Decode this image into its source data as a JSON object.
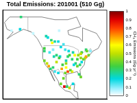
{
  "chart_data": {
    "type": "map",
    "title": "Total Emissions: 201001 (510 Gg)",
    "xlim": [
      -170,
      -50
    ],
    "ylim": [
      10,
      75
    ],
    "tick_labels": false,
    "grid": false,
    "colorbar": {
      "label": "CH₄ Emissions (Gg yr⁻¹)",
      "range": [
        0,
        1
      ],
      "ticks": [
        0,
        0.1,
        0.2,
        0.3,
        0.4,
        0.5,
        0.6,
        0.7,
        0.8,
        0.9,
        1
      ]
    },
    "cells": [
      [
        -114,
        53,
        0.3
      ],
      [
        -113,
        51,
        0.6
      ],
      [
        -110,
        52,
        0.25
      ],
      [
        -106,
        52,
        0.2
      ],
      [
        -100,
        50,
        0.15
      ],
      [
        -118,
        55,
        0.2
      ],
      [
        -120,
        56,
        0.25
      ],
      [
        -79,
        44,
        0.35
      ],
      [
        -74,
        46,
        0.3
      ],
      [
        -80,
        43,
        0.5
      ],
      [
        -73,
        45,
        0.4
      ],
      [
        -105,
        60,
        0.05
      ],
      [
        -75,
        40,
        0.5
      ],
      [
        -74,
        41,
        0.7
      ],
      [
        -77,
        39,
        0.4
      ],
      [
        -80,
        40,
        0.45
      ],
      [
        -84,
        39,
        0.35
      ],
      [
        -87,
        42,
        0.6
      ],
      [
        -83,
        42,
        0.45
      ],
      [
        -90,
        39,
        0.3
      ],
      [
        -86,
        36,
        0.3
      ],
      [
        -84,
        34,
        0.4
      ],
      [
        -81,
        35,
        0.3
      ],
      [
        -82,
        28,
        0.3
      ],
      [
        -80,
        26,
        0.4
      ],
      [
        -90,
        30,
        0.55
      ],
      [
        -92,
        31,
        0.4
      ],
      [
        -95,
        30,
        0.8
      ],
      [
        -97,
        33,
        0.6
      ],
      [
        -98,
        29,
        0.4
      ],
      [
        -102,
        32,
        0.7
      ],
      [
        -101,
        35,
        0.35
      ],
      [
        -97,
        36,
        0.45
      ],
      [
        -97,
        38,
        0.25
      ],
      [
        -95,
        41,
        0.3
      ],
      [
        -93,
        42,
        0.35
      ],
      [
        -89,
        44,
        0.25
      ],
      [
        -94,
        45,
        0.2
      ],
      [
        -98,
        46,
        0.15
      ],
      [
        -104,
        41,
        0.2
      ],
      [
        -105,
        40,
        0.35
      ],
      [
        -108,
        37,
        0.5
      ],
      [
        -108,
        42,
        0.3
      ],
      [
        -111,
        41,
        0.25
      ],
      [
        -112,
        33,
        0.3
      ],
      [
        -117,
        34,
        0.7
      ],
      [
        -119,
        36,
        0.5
      ],
      [
        -122,
        38,
        0.4
      ],
      [
        -122,
        45,
        0.3
      ],
      [
        -122,
        47,
        0.35
      ],
      [
        -116,
        44,
        0.15
      ],
      [
        -112,
        46,
        0.1
      ],
      [
        -103,
        48,
        0.2
      ],
      [
        -88,
        35,
        0.2
      ],
      [
        -79,
        37,
        0.2
      ],
      [
        -71,
        42,
        0.4
      ],
      [
        -69,
        45,
        0.1
      ],
      [
        -99,
        19,
        0.9
      ],
      [
        -103,
        21,
        0.4
      ],
      [
        -100,
        25,
        0.4
      ],
      [
        -106,
        29,
        0.2
      ],
      [
        -96,
        19,
        0.3
      ],
      [
        -93,
        18,
        0.5
      ],
      [
        -89,
        21,
        0.2
      ],
      [
        -110,
        30,
        0.15
      ],
      [
        -115,
        32,
        0.3
      ],
      [
        -150,
        61,
        0.2
      ],
      [
        -149,
        70,
        0.3
      ],
      [
        -160,
        60,
        0.05
      ],
      [
        -135,
        58,
        0.05
      ]
    ]
  }
}
